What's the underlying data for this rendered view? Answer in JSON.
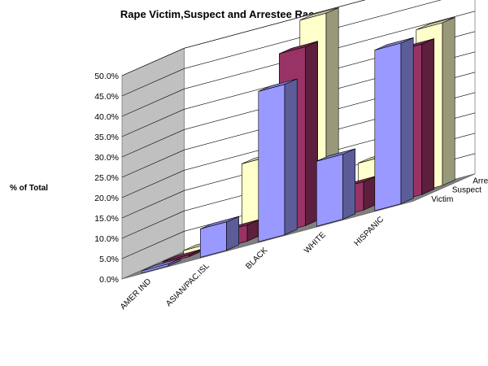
{
  "chart_data": {
    "type": "bar",
    "title": "Rape Victim,Suspect and Arrestee Race Ethnicity",
    "ylabel": "% of Total",
    "xlabel": "",
    "categories": [
      "AMER IND",
      "ASIAN/PAC.ISL",
      "BLACK",
      "WHITE",
      "HISPANIC"
    ],
    "series": [
      {
        "name": "Victim",
        "values": [
          0.5,
          7.0,
          37.0,
          16.0,
          39.5
        ],
        "color": "#9999ff"
      },
      {
        "name": "Suspect",
        "values": [
          0.5,
          4.0,
          44.0,
          7.0,
          37.0
        ],
        "color": "#993366"
      },
      {
        "name": "Arrestee",
        "values": [
          1.0,
          18.5,
          50.0,
          11.0,
          40.0
        ],
        "color": "#ffffcc"
      }
    ],
    "yticks": [
      "0.0%",
      "5.0%",
      "10.0%",
      "15.0%",
      "20.0%",
      "25.0%",
      "30.0%",
      "35.0%",
      "40.0%",
      "45.0%",
      "50.0%"
    ],
    "ylim": [
      0,
      50
    ],
    "grid": true,
    "style": "3d-column"
  }
}
